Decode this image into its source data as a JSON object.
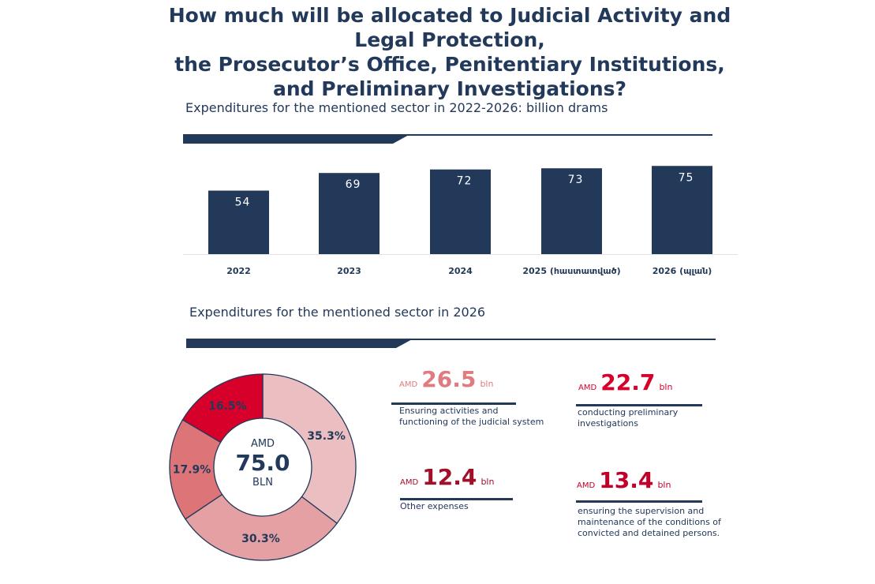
{
  "title": "How much will be allocated to Judicial Activity and Legal Protection,\nthe Prosecutor’s Office, Penitentiary Institutions, and Preliminary Investigations?",
  "colors": {
    "navy": "#22395a",
    "slice1": "#ebbfc2",
    "slice2": "#e5a0a3",
    "slice3": "#dd7578",
    "slice4": "#d6002a"
  },
  "chart_data": [
    {
      "type": "bar",
      "title": "Expenditures for the mentioned sector in 2022-2026: billion drams",
      "categories": [
        "2022",
        "2023",
        "2024",
        "2025 (հաստատված)",
        "2026 (պլան)"
      ],
      "values": [
        54,
        69,
        72,
        73,
        75
      ],
      "value_labels": [
        "54",
        "69",
        "72",
        "73",
        "75"
      ],
      "color": "#22395a",
      "ylim": [
        0,
        75
      ]
    },
    {
      "type": "pie",
      "title": "Expenditures for the mentioned sector in 2026",
      "center": {
        "top": "AMD",
        "value": "75.0",
        "bottom": "BLN"
      },
      "values": [
        35.3,
        30.3,
        17.9,
        16.5
      ],
      "labels": [
        "35.3%",
        "30.3%",
        "17.9%",
        "16.5%"
      ],
      "colors": [
        "#ebbfc2",
        "#e5a0a3",
        "#dd7578",
        "#d6002a"
      ]
    }
  ],
  "callouts": [
    {
      "prefix": "AMD",
      "value": "26.5",
      "unit": "bln",
      "desc": "Ensuring activities and functioning of the judicial system",
      "color": "#e07b7f"
    },
    {
      "prefix": "AMD",
      "value": "22.7",
      "unit": "bln",
      "desc": "conducting preliminary investigations",
      "color": "#d6002a"
    },
    {
      "prefix": "AMD",
      "value": "12.4",
      "unit": "bln",
      "desc": "Other expenses",
      "color": "#a0102a"
    },
    {
      "prefix": "AMD",
      "value": "13.4",
      "unit": "bln",
      "desc": "ensuring the supervision and maintenance of the conditions of convicted and detained persons.",
      "color": "#c0002a"
    }
  ]
}
